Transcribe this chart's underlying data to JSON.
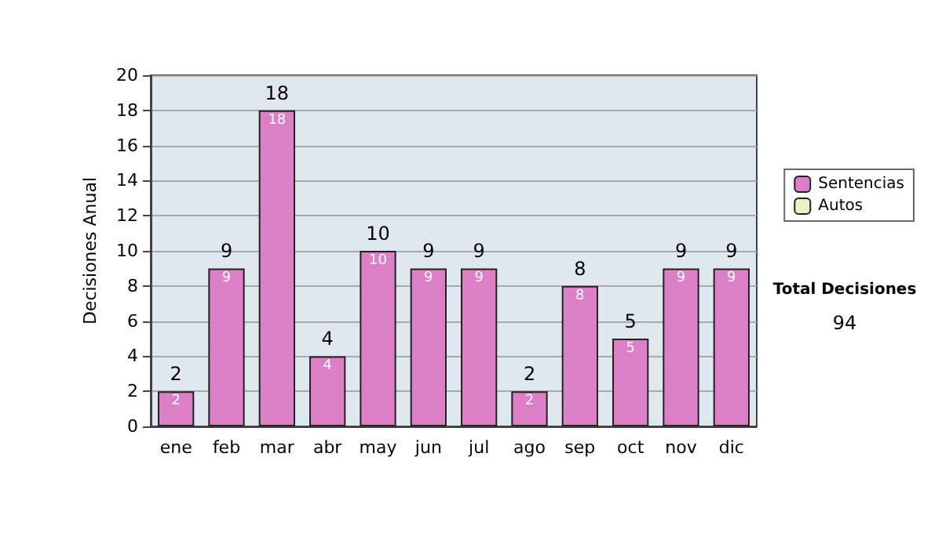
{
  "chart_data": {
    "type": "bar",
    "ylabel": "Decisiones Anual",
    "categories": [
      "ene",
      "feb",
      "mar",
      "abr",
      "may",
      "jun",
      "jul",
      "ago",
      "sep",
      "oct",
      "nov",
      "dic"
    ],
    "series": [
      {
        "name": "Sentencias",
        "color": "#dd7fc6",
        "values": [
          2,
          9,
          18,
          4,
          10,
          9,
          9,
          2,
          8,
          5,
          9,
          9
        ],
        "value_labels": [
          "2",
          "9",
          "18",
          "4",
          "10",
          "9",
          "9",
          "2",
          "8",
          "5",
          "9",
          "9"
        ]
      },
      {
        "name": "Autos",
        "color": "#eef2c0",
        "values": [
          0,
          0,
          0,
          0,
          0,
          0,
          0,
          0,
          0,
          0,
          0,
          0
        ]
      }
    ],
    "stacked": true,
    "totals": [
      "2",
      "9",
      "18",
      "4",
      "10",
      "9",
      "9",
      "2",
      "8",
      "5",
      "9",
      "9"
    ],
    "ylim": [
      0,
      20
    ],
    "yticks": [
      0,
      2,
      4,
      6,
      8,
      10,
      12,
      14,
      16,
      18,
      20
    ],
    "grid": "y",
    "legend": "right",
    "annotations": [
      "Total Decisiones",
      "94"
    ]
  }
}
